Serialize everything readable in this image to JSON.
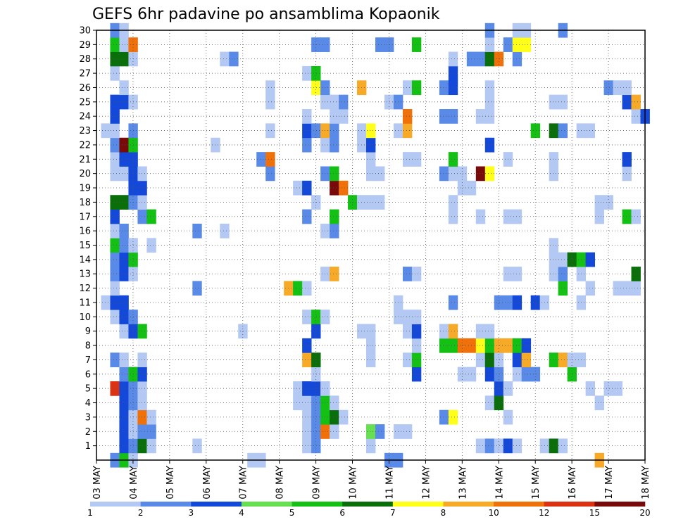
{
  "chart_data": {
    "type": "heatmap",
    "title": "GEFS 6hr padavine po ansamblima Kopaonik",
    "xlabel": "",
    "ylabel": "",
    "x_ticks": [
      "03 MAY",
      "04 MAY",
      "05 MAY",
      "06 MAY",
      "07 MAY",
      "08 MAY",
      "09 MAY",
      "10 MAY",
      "11 MAY",
      "12 MAY",
      "13 MAY",
      "14 MAY",
      "15 MAY",
      "16 MAY",
      "17 MAY",
      "18 MAY"
    ],
    "y_ticks": [
      1,
      2,
      3,
      4,
      5,
      6,
      7,
      8,
      9,
      10,
      11,
      12,
      13,
      14,
      15,
      16,
      17,
      18,
      19,
      20,
      21,
      22,
      23,
      24,
      25,
      26,
      27,
      28,
      29,
      30
    ],
    "x_range_steps": [
      0,
      60
    ],
    "steps_per_day": 4,
    "y_range_members": [
      0,
      30
    ],
    "grid": true,
    "colorbar": {
      "position": "bottom",
      "labels": [
        "1",
        "2",
        "3",
        "4",
        "5",
        "6",
        "7",
        "8",
        "10",
        "12",
        "15",
        "20"
      ],
      "colors": [
        "#b4c8f4",
        "#5a8ae8",
        "#1448d8",
        "#66e050",
        "#14c014",
        "#0a6e0a",
        "#ffff1a",
        "#f6aa28",
        "#f0700a",
        "#dc3214",
        "#780a0a"
      ]
    },
    "cells_note": "each cell: [time step index (6-hourly from 03 MAY 00Z), member 0-30, color class index into colorbar.colors]",
    "cells": [
      [
        2,
        0,
        1
      ],
      [
        3,
        0,
        4
      ],
      [
        4,
        0,
        0
      ],
      [
        17,
        0,
        0
      ],
      [
        18,
        0,
        0
      ],
      [
        32,
        0,
        1
      ],
      [
        33,
        0,
        1
      ],
      [
        55,
        0,
        7
      ],
      [
        3,
        1,
        2
      ],
      [
        4,
        1,
        1
      ],
      [
        5,
        1,
        5
      ],
      [
        6,
        1,
        0
      ],
      [
        11,
        1,
        0
      ],
      [
        23,
        1,
        0
      ],
      [
        24,
        1,
        1
      ],
      [
        30,
        1,
        0
      ],
      [
        42,
        1,
        0
      ],
      [
        43,
        1,
        1
      ],
      [
        44,
        1,
        0
      ],
      [
        45,
        1,
        2
      ],
      [
        46,
        1,
        0
      ],
      [
        49,
        1,
        0
      ],
      [
        50,
        1,
        5
      ],
      [
        51,
        1,
        0
      ],
      [
        3,
        2,
        2
      ],
      [
        4,
        2,
        0
      ],
      [
        5,
        2,
        1
      ],
      [
        6,
        2,
        1
      ],
      [
        23,
        2,
        0
      ],
      [
        24,
        2,
        1
      ],
      [
        25,
        2,
        8
      ],
      [
        26,
        2,
        0
      ],
      [
        30,
        2,
        3
      ],
      [
        31,
        2,
        1
      ],
      [
        33,
        2,
        0
      ],
      [
        34,
        2,
        0
      ],
      [
        3,
        3,
        2
      ],
      [
        4,
        3,
        0
      ],
      [
        5,
        3,
        8
      ],
      [
        6,
        3,
        0
      ],
      [
        23,
        3,
        0
      ],
      [
        24,
        3,
        1
      ],
      [
        25,
        3,
        4
      ],
      [
        26,
        3,
        5
      ],
      [
        27,
        3,
        0
      ],
      [
        38,
        3,
        1
      ],
      [
        39,
        3,
        6
      ],
      [
        45,
        3,
        0
      ],
      [
        3,
        4,
        2
      ],
      [
        4,
        4,
        1
      ],
      [
        5,
        4,
        0
      ],
      [
        22,
        4,
        0
      ],
      [
        23,
        4,
        0
      ],
      [
        24,
        4,
        1
      ],
      [
        25,
        4,
        4
      ],
      [
        26,
        4,
        0
      ],
      [
        43,
        4,
        0
      ],
      [
        44,
        4,
        5
      ],
      [
        55,
        4,
        0
      ],
      [
        2,
        5,
        9
      ],
      [
        3,
        5,
        2
      ],
      [
        4,
        5,
        1
      ],
      [
        5,
        5,
        0
      ],
      [
        22,
        5,
        0
      ],
      [
        23,
        5,
        2
      ],
      [
        24,
        5,
        2
      ],
      [
        25,
        5,
        0
      ],
      [
        44,
        5,
        2
      ],
      [
        45,
        5,
        0
      ],
      [
        54,
        5,
        0
      ],
      [
        56,
        5,
        0
      ],
      [
        57,
        5,
        0
      ],
      [
        3,
        6,
        1
      ],
      [
        4,
        6,
        4
      ],
      [
        5,
        6,
        2
      ],
      [
        24,
        6,
        0
      ],
      [
        35,
        6,
        2
      ],
      [
        40,
        6,
        0
      ],
      [
        41,
        6,
        0
      ],
      [
        43,
        6,
        2
      ],
      [
        44,
        6,
        1
      ],
      [
        46,
        6,
        0
      ],
      [
        47,
        6,
        1
      ],
      [
        48,
        6,
        1
      ],
      [
        52,
        6,
        4
      ],
      [
        2,
        7,
        1
      ],
      [
        3,
        7,
        0
      ],
      [
        5,
        7,
        0
      ],
      [
        23,
        7,
        7
      ],
      [
        24,
        7,
        5
      ],
      [
        30,
        7,
        0
      ],
      [
        34,
        7,
        0
      ],
      [
        35,
        7,
        4
      ],
      [
        42,
        7,
        0
      ],
      [
        43,
        7,
        5
      ],
      [
        44,
        7,
        0
      ],
      [
        46,
        7,
        2
      ],
      [
        47,
        7,
        7
      ],
      [
        50,
        7,
        4
      ],
      [
        51,
        7,
        7
      ],
      [
        52,
        7,
        0
      ],
      [
        53,
        7,
        0
      ],
      [
        23,
        8,
        2
      ],
      [
        30,
        8,
        0
      ],
      [
        35,
        8,
        0
      ],
      [
        38,
        8,
        4
      ],
      [
        39,
        8,
        4
      ],
      [
        40,
        8,
        8
      ],
      [
        41,
        8,
        8
      ],
      [
        42,
        8,
        6
      ],
      [
        43,
        8,
        4
      ],
      [
        44,
        8,
        7
      ],
      [
        45,
        8,
        7
      ],
      [
        46,
        8,
        4
      ],
      [
        47,
        8,
        2
      ],
      [
        3,
        9,
        0
      ],
      [
        4,
        9,
        2
      ],
      [
        5,
        9,
        4
      ],
      [
        16,
        9,
        0
      ],
      [
        24,
        9,
        2
      ],
      [
        29,
        9,
        0
      ],
      [
        30,
        9,
        0
      ],
      [
        34,
        9,
        0
      ],
      [
        35,
        9,
        2
      ],
      [
        38,
        9,
        0
      ],
      [
        39,
        9,
        7
      ],
      [
        42,
        9,
        0
      ],
      [
        43,
        9,
        0
      ],
      [
        2,
        10,
        0
      ],
      [
        3,
        10,
        2
      ],
      [
        4,
        10,
        1
      ],
      [
        23,
        10,
        0
      ],
      [
        24,
        10,
        4
      ],
      [
        25,
        10,
        0
      ],
      [
        33,
        10,
        0
      ],
      [
        34,
        10,
        0
      ],
      [
        35,
        10,
        0
      ],
      [
        1,
        11,
        0
      ],
      [
        2,
        11,
        2
      ],
      [
        3,
        11,
        2
      ],
      [
        33,
        11,
        0
      ],
      [
        39,
        11,
        1
      ],
      [
        44,
        11,
        1
      ],
      [
        45,
        11,
        1
      ],
      [
        46,
        11,
        2
      ],
      [
        48,
        11,
        2
      ],
      [
        49,
        11,
        0
      ],
      [
        53,
        11,
        0
      ],
      [
        2,
        12,
        0
      ],
      [
        11,
        12,
        1
      ],
      [
        21,
        12,
        7
      ],
      [
        22,
        12,
        4
      ],
      [
        23,
        12,
        0
      ],
      [
        51,
        12,
        4
      ],
      [
        54,
        12,
        0
      ],
      [
        57,
        12,
        0
      ],
      [
        58,
        12,
        0
      ],
      [
        59,
        12,
        0
      ],
      [
        2,
        13,
        1
      ],
      [
        3,
        13,
        2
      ],
      [
        4,
        13,
        0
      ],
      [
        25,
        13,
        0
      ],
      [
        26,
        13,
        7
      ],
      [
        34,
        13,
        1
      ],
      [
        35,
        13,
        0
      ],
      [
        45,
        13,
        0
      ],
      [
        46,
        13,
        0
      ],
      [
        50,
        13,
        0
      ],
      [
        51,
        13,
        1
      ],
      [
        53,
        13,
        0
      ],
      [
        59,
        13,
        5
      ],
      [
        2,
        14,
        1
      ],
      [
        3,
        14,
        2
      ],
      [
        4,
        14,
        4
      ],
      [
        50,
        14,
        0
      ],
      [
        51,
        14,
        0
      ],
      [
        52,
        14,
        5
      ],
      [
        53,
        14,
        4
      ],
      [
        54,
        14,
        2
      ],
      [
        2,
        15,
        4
      ],
      [
        3,
        15,
        1
      ],
      [
        4,
        15,
        0
      ],
      [
        6,
        15,
        0
      ],
      [
        50,
        15,
        0
      ],
      [
        2,
        16,
        0
      ],
      [
        3,
        16,
        1
      ],
      [
        11,
        16,
        1
      ],
      [
        14,
        16,
        0
      ],
      [
        25,
        16,
        0
      ],
      [
        26,
        16,
        1
      ],
      [
        2,
        17,
        2
      ],
      [
        5,
        17,
        1
      ],
      [
        6,
        17,
        4
      ],
      [
        23,
        17,
        1
      ],
      [
        26,
        17,
        4
      ],
      [
        39,
        17,
        0
      ],
      [
        42,
        17,
        0
      ],
      [
        45,
        17,
        0
      ],
      [
        46,
        17,
        0
      ],
      [
        55,
        17,
        0
      ],
      [
        58,
        17,
        4
      ],
      [
        59,
        17,
        0
      ],
      [
        2,
        18,
        5
      ],
      [
        3,
        18,
        5
      ],
      [
        4,
        18,
        1
      ],
      [
        5,
        18,
        0
      ],
      [
        24,
        18,
        0
      ],
      [
        28,
        18,
        4
      ],
      [
        29,
        18,
        0
      ],
      [
        30,
        18,
        0
      ],
      [
        31,
        18,
        0
      ],
      [
        39,
        18,
        0
      ],
      [
        55,
        18,
        0
      ],
      [
        56,
        18,
        0
      ],
      [
        4,
        19,
        2
      ],
      [
        5,
        19,
        2
      ],
      [
        22,
        19,
        0
      ],
      [
        23,
        19,
        2
      ],
      [
        26,
        19,
        10
      ],
      [
        27,
        19,
        8
      ],
      [
        40,
        19,
        0
      ],
      [
        41,
        19,
        0
      ],
      [
        2,
        20,
        0
      ],
      [
        3,
        20,
        0
      ],
      [
        4,
        20,
        2
      ],
      [
        5,
        20,
        0
      ],
      [
        19,
        20,
        1
      ],
      [
        25,
        20,
        1
      ],
      [
        26,
        20,
        4
      ],
      [
        30,
        20,
        0
      ],
      [
        31,
        20,
        0
      ],
      [
        38,
        20,
        1
      ],
      [
        39,
        20,
        0
      ],
      [
        40,
        20,
        0
      ],
      [
        42,
        20,
        10
      ],
      [
        43,
        20,
        6
      ],
      [
        50,
        20,
        0
      ],
      [
        58,
        20,
        0
      ],
      [
        2,
        21,
        0
      ],
      [
        3,
        21,
        2
      ],
      [
        4,
        21,
        2
      ],
      [
        18,
        21,
        1
      ],
      [
        19,
        21,
        8
      ],
      [
        30,
        21,
        0
      ],
      [
        34,
        21,
        0
      ],
      [
        35,
        21,
        0
      ],
      [
        39,
        21,
        4
      ],
      [
        45,
        21,
        0
      ],
      [
        50,
        21,
        0
      ],
      [
        58,
        21,
        2
      ],
      [
        2,
        22,
        1
      ],
      [
        3,
        22,
        10
      ],
      [
        4,
        22,
        4
      ],
      [
        13,
        22,
        0
      ],
      [
        23,
        22,
        1
      ],
      [
        25,
        22,
        0
      ],
      [
        26,
        22,
        1
      ],
      [
        29,
        22,
        0
      ],
      [
        30,
        22,
        2
      ],
      [
        43,
        22,
        2
      ],
      [
        1,
        23,
        0
      ],
      [
        2,
        23,
        0
      ],
      [
        4,
        23,
        1
      ],
      [
        19,
        23,
        0
      ],
      [
        23,
        23,
        2
      ],
      [
        24,
        23,
        1
      ],
      [
        25,
        23,
        7
      ],
      [
        26,
        23,
        1
      ],
      [
        29,
        23,
        0
      ],
      [
        30,
        23,
        6
      ],
      [
        33,
        23,
        0
      ],
      [
        34,
        23,
        7
      ],
      [
        48,
        23,
        4
      ],
      [
        50,
        23,
        5
      ],
      [
        51,
        23,
        1
      ],
      [
        53,
        23,
        0
      ],
      [
        54,
        23,
        0
      ],
      [
        2,
        24,
        2
      ],
      [
        23,
        24,
        0
      ],
      [
        26,
        24,
        0
      ],
      [
        27,
        24,
        0
      ],
      [
        34,
        24,
        8
      ],
      [
        38,
        24,
        1
      ],
      [
        39,
        24,
        1
      ],
      [
        42,
        24,
        0
      ],
      [
        43,
        24,
        0
      ],
      [
        59,
        24,
        0
      ],
      [
        60,
        24,
        2
      ],
      [
        2,
        25,
        2
      ],
      [
        3,
        25,
        2
      ],
      [
        4,
        25,
        0
      ],
      [
        19,
        25,
        0
      ],
      [
        25,
        25,
        0
      ],
      [
        26,
        25,
        0
      ],
      [
        27,
        25,
        1
      ],
      [
        32,
        25,
        0
      ],
      [
        33,
        25,
        1
      ],
      [
        43,
        25,
        0
      ],
      [
        50,
        25,
        0
      ],
      [
        51,
        25,
        0
      ],
      [
        58,
        25,
        2
      ],
      [
        59,
        25,
        7
      ],
      [
        3,
        26,
        0
      ],
      [
        19,
        26,
        0
      ],
      [
        24,
        26,
        6
      ],
      [
        25,
        26,
        1
      ],
      [
        29,
        26,
        7
      ],
      [
        34,
        26,
        0
      ],
      [
        35,
        26,
        4
      ],
      [
        38,
        26,
        1
      ],
      [
        39,
        26,
        2
      ],
      [
        43,
        26,
        0
      ],
      [
        56,
        26,
        1
      ],
      [
        57,
        26,
        0
      ],
      [
        58,
        26,
        0
      ],
      [
        2,
        27,
        0
      ],
      [
        23,
        27,
        0
      ],
      [
        24,
        27,
        4
      ],
      [
        39,
        27,
        2
      ],
      [
        2,
        28,
        5
      ],
      [
        3,
        28,
        5
      ],
      [
        4,
        28,
        0
      ],
      [
        14,
        28,
        0
      ],
      [
        15,
        28,
        1
      ],
      [
        39,
        28,
        0
      ],
      [
        41,
        28,
        1
      ],
      [
        42,
        28,
        1
      ],
      [
        43,
        28,
        5
      ],
      [
        44,
        28,
        8
      ],
      [
        46,
        28,
        1
      ],
      [
        2,
        29,
        4
      ],
      [
        3,
        29,
        0
      ],
      [
        4,
        29,
        8
      ],
      [
        24,
        29,
        1
      ],
      [
        25,
        29,
        1
      ],
      [
        31,
        29,
        1
      ],
      [
        32,
        29,
        1
      ],
      [
        35,
        29,
        4
      ],
      [
        43,
        29,
        0
      ],
      [
        45,
        29,
        1
      ],
      [
        46,
        29,
        6
      ],
      [
        47,
        29,
        6
      ],
      [
        2,
        30,
        1
      ],
      [
        3,
        30,
        0
      ],
      [
        43,
        30,
        1
      ],
      [
        46,
        30,
        0
      ],
      [
        47,
        30,
        0
      ],
      [
        51,
        30,
        1
      ]
    ]
  }
}
